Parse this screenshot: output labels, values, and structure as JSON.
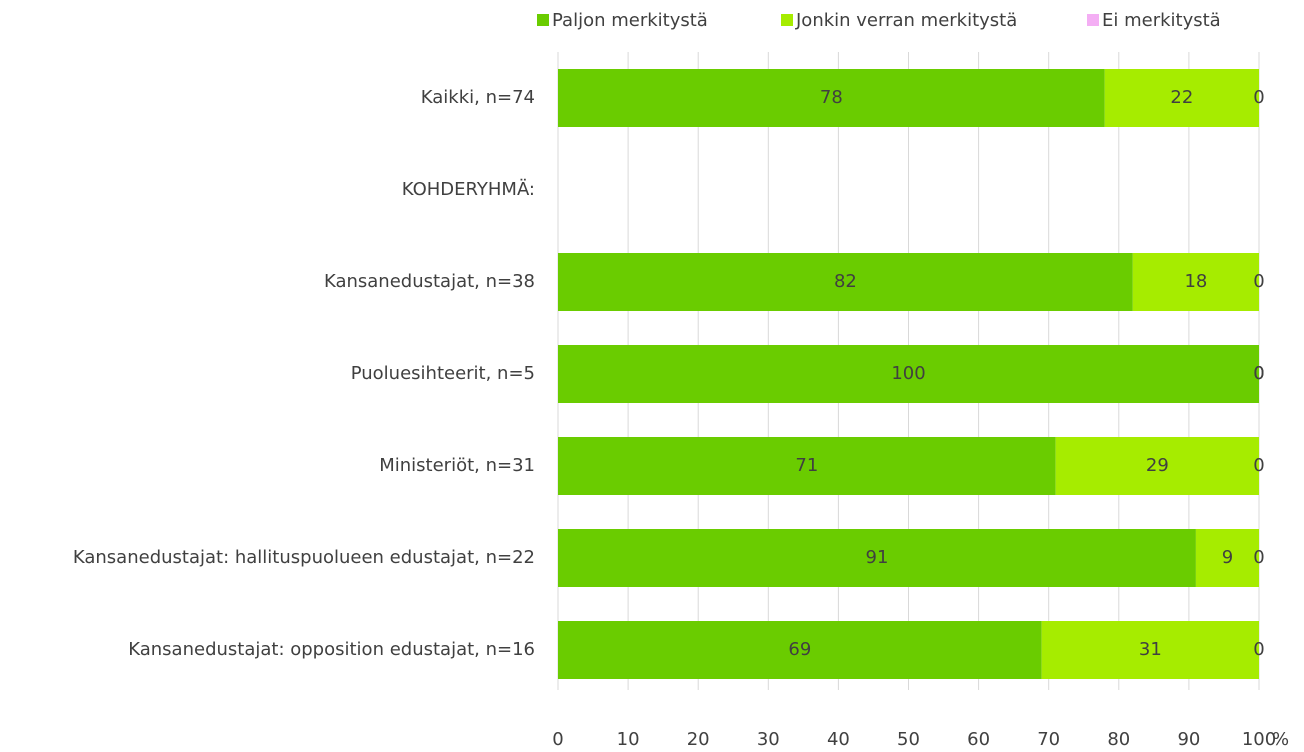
{
  "chart_data": {
    "type": "stacked_barh",
    "categories": [
      "Kaikki, n=74",
      "KOHDERYHMÄ:",
      "Kansanedustajat, n=38",
      "Puoluesihteerit, n=5",
      "Ministeriöt, n=31",
      "Kansanedustajat: hallituspuolueen edustajat, n=22",
      "Kansanedustajat: opposition edustajat, n=16"
    ],
    "series": [
      {
        "name": "Paljon merkitystä",
        "color": "#6acc00",
        "values": [
          78,
          null,
          82,
          100,
          71,
          91,
          69
        ]
      },
      {
        "name": "Jonkin verran merkitystä",
        "color": "#a6ec00",
        "values": [
          22,
          null,
          18,
          0,
          29,
          9,
          31
        ]
      },
      {
        "name": "Ei merkitystä",
        "color": "#f4aef4",
        "values": [
          0,
          null,
          0,
          0,
          0,
          0,
          0
        ]
      }
    ],
    "x_label": "%",
    "xlim": [
      0,
      100
    ],
    "xticks": [
      0,
      10,
      20,
      30,
      40,
      50,
      60,
      70,
      80,
      90,
      100
    ],
    "grid": true,
    "legend": "top"
  }
}
